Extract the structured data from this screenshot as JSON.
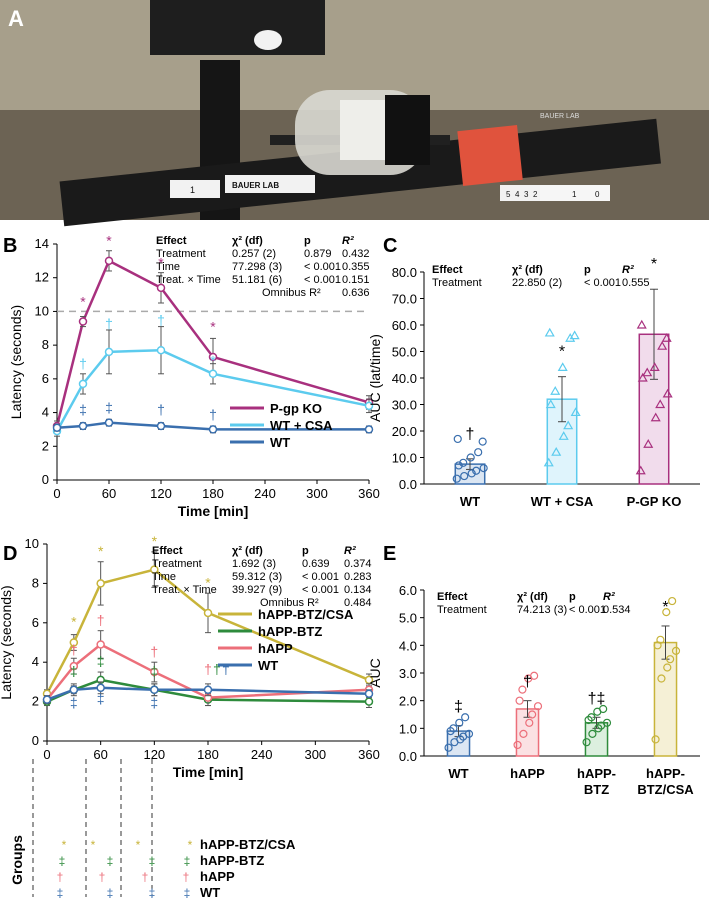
{
  "panel_a": {
    "letter": "A",
    "photo_labels": {
      "left_tag": "1",
      "center_tag": "BAUER LAB",
      "numbers": [
        "5",
        "4",
        "3",
        "2"
      ],
      "right_numbers": [
        "1",
        "0"
      ],
      "back_tag": "BAUER LAB"
    }
  },
  "chart_data": [
    {
      "panel": "B",
      "type": "line",
      "ylabel": "Latency (seconds)",
      "xlabel": "Time [min]",
      "ylim": [
        0,
        14
      ],
      "yticks": [
        0,
        2,
        4,
        6,
        8,
        10,
        12,
        14
      ],
      "xlim": [
        0,
        360
      ],
      "xticks": [
        0,
        60,
        120,
        180,
        240,
        300,
        360
      ],
      "reference_line": 10,
      "series": [
        {
          "name": "P-gp KO",
          "color": "#a8307e",
          "x": [
            0,
            30,
            60,
            120,
            180,
            360
          ],
          "y": [
            3.2,
            9.4,
            13.0,
            11.4,
            7.3,
            4.6
          ],
          "err": [
            0.3,
            0.3,
            0.6,
            0.9,
            1.1,
            0.4
          ]
        },
        {
          "name": "WT + CSA",
          "color": "#5ccbee",
          "x": [
            0,
            30,
            60,
            120,
            180,
            360
          ],
          "y": [
            2.9,
            5.7,
            7.6,
            7.7,
            6.3,
            4.4
          ],
          "err": [
            0.3,
            0.6,
            1.3,
            1.4,
            0.6,
            0.4
          ]
        },
        {
          "name": "WT",
          "color": "#3a6fae",
          "x": [
            0,
            30,
            60,
            120,
            180,
            360
          ],
          "y": [
            3.1,
            3.2,
            3.4,
            3.2,
            3.0,
            3.0
          ],
          "err": [
            0.2,
            0.2,
            0.2,
            0.2,
            0.2,
            0.2
          ]
        }
      ],
      "markers": [
        {
          "x": 30,
          "y": 10.3,
          "text": "*",
          "color": "#a8307e"
        },
        {
          "x": 60,
          "y": 13.9,
          "text": "*",
          "color": "#a8307e"
        },
        {
          "x": 120,
          "y": 12.6,
          "text": "*",
          "color": "#a8307e"
        },
        {
          "x": 180,
          "y": 8.8,
          "text": "*",
          "color": "#a8307e"
        },
        {
          "x": 30,
          "y": 6.6,
          "text": "†",
          "color": "#5ccbee"
        },
        {
          "x": 60,
          "y": 9.0,
          "text": "†",
          "color": "#5ccbee"
        },
        {
          "x": 120,
          "y": 9.2,
          "text": "†",
          "color": "#5ccbee"
        },
        {
          "x": 180,
          "y": 6.8,
          "text": "*",
          "color": "#5ccbee"
        },
        {
          "x": 30,
          "y": 3.9,
          "text": "‡",
          "color": "#3a6fae"
        },
        {
          "x": 60,
          "y": 4.0,
          "text": "‡",
          "color": "#3a6fae"
        },
        {
          "x": 120,
          "y": 3.9,
          "text": "†",
          "color": "#3a6fae"
        },
        {
          "x": 180,
          "y": 3.6,
          "text": "†",
          "color": "#3a6fae"
        }
      ],
      "stats": {
        "header": [
          "Effect",
          "χ² (df)",
          "p",
          "R²"
        ],
        "rows": [
          [
            "Treatment",
            "0.257 (2)",
            "0.879",
            "0.432"
          ],
          [
            "Time",
            "77.298 (3)",
            "< 0.001",
            "0.355"
          ],
          [
            "Treat. × Time",
            "51.181 (6)",
            "< 0.001",
            "0.151"
          ]
        ],
        "omnibus_label": "Omnibus R²",
        "omnibus_value": "0.636"
      }
    },
    {
      "panel": "C",
      "type": "bar",
      "ylabel": "AUC (lat/time)",
      "ylim": [
        0,
        80
      ],
      "yticks": [
        "0.0",
        "10.0",
        "20.0",
        "30.0",
        "40.0",
        "50.0",
        "60.0",
        "70.0",
        "80.0"
      ],
      "categories": [
        "WT",
        "WT + CSA",
        "P-GP KO"
      ],
      "values": [
        7.5,
        32.0,
        56.5
      ],
      "err": [
        2.0,
        8.5,
        17.0
      ],
      "colors": [
        "#3a6fae",
        "#5ccbee",
        "#a8307e"
      ],
      "fills": [
        "#dbe6f3",
        "#dff4fc",
        "#f1dcec"
      ],
      "point_shapes": [
        "circle",
        "triangle",
        "triangle"
      ],
      "points": [
        [
          2,
          3,
          4,
          5,
          6,
          7,
          8,
          10,
          12,
          16,
          17
        ],
        [
          8,
          12,
          18,
          22,
          27,
          30,
          35,
          44,
          55,
          56,
          57
        ],
        [
          5,
          15,
          25,
          30,
          34,
          40,
          42,
          44,
          52,
          55,
          60
        ]
      ],
      "markers": [
        "†",
        "*",
        "*"
      ],
      "stats": {
        "header": [
          "Effect",
          "χ² (df)",
          "p",
          "R²"
        ],
        "rows": [
          [
            "Treatment",
            "22.850 (2)",
            "< 0.001",
            "0.555"
          ]
        ]
      }
    },
    {
      "panel": "D",
      "type": "line",
      "ylabel": "Latency (seconds)",
      "xlabel": "Time [min]",
      "ylim": [
        0,
        10
      ],
      "yticks": [
        0,
        2,
        4,
        6,
        8,
        10
      ],
      "xlim": [
        0,
        360
      ],
      "xticks": [
        0,
        60,
        120,
        180,
        240,
        300,
        360
      ],
      "series": [
        {
          "name": "hAPP-BTZ/CSA",
          "color": "#c8b43a",
          "x": [
            0,
            30,
            60,
            120,
            180,
            360
          ],
          "y": [
            2.4,
            5.0,
            8.0,
            8.7,
            6.5,
            3.1
          ],
          "err": [
            0.2,
            0.4,
            1.1,
            0.9,
            1.0,
            0.3
          ]
        },
        {
          "name": "hAPP-BTZ",
          "color": "#2e8b3c",
          "x": [
            0,
            30,
            60,
            120,
            180,
            360
          ],
          "y": [
            2.0,
            2.6,
            3.1,
            2.6,
            2.1,
            2.0
          ],
          "err": [
            0.2,
            0.3,
            0.4,
            0.3,
            0.3,
            0.3
          ]
        },
        {
          "name": "hAPP",
          "color": "#ec6f7a",
          "x": [
            0,
            30,
            60,
            120,
            180,
            360
          ],
          "y": [
            2.1,
            3.8,
            4.9,
            3.5,
            2.2,
            2.6
          ],
          "err": [
            0.2,
            0.4,
            0.7,
            0.5,
            0.4,
            0.3
          ]
        },
        {
          "name": "WT",
          "color": "#3a6fae",
          "x": [
            0,
            30,
            60,
            120,
            180,
            360
          ],
          "y": [
            2.1,
            2.6,
            2.7,
            2.6,
            2.6,
            2.4
          ],
          "err": [
            0.2,
            0.2,
            0.3,
            0.3,
            0.3,
            0.2
          ]
        }
      ],
      "markers": [
        {
          "x": 30,
          "y": 5.8,
          "text": "*",
          "color": "#c8b43a"
        },
        {
          "x": 60,
          "y": 9.4,
          "text": "*",
          "color": "#c8b43a"
        },
        {
          "x": 120,
          "y": 9.9,
          "text": "*",
          "color": "#c8b43a"
        },
        {
          "x": 180,
          "y": 7.8,
          "text": "*",
          "color": "#c8b43a"
        },
        {
          "x": 30,
          "y": 4.4,
          "text": "†",
          "color": "#ec6f7a"
        },
        {
          "x": 60,
          "y": 5.9,
          "text": "†",
          "color": "#ec6f7a"
        },
        {
          "x": 120,
          "y": 4.3,
          "text": "†",
          "color": "#ec6f7a"
        },
        {
          "x": 30,
          "y": 3.3,
          "text": "‡",
          "color": "#2e8b3c"
        },
        {
          "x": 60,
          "y": 3.8,
          "text": "‡",
          "color": "#2e8b3c"
        },
        {
          "x": 120,
          "y": 3.3,
          "text": "‡",
          "color": "#2e8b3c"
        },
        {
          "x": 30,
          "y": 1.7,
          "text": "‡",
          "color": "#3a6fae"
        },
        {
          "x": 60,
          "y": 1.9,
          "text": "‡",
          "color": "#3a6fae"
        },
        {
          "x": 120,
          "y": 1.7,
          "text": "‡",
          "color": "#3a6fae"
        },
        {
          "x": 180,
          "y": 3.4,
          "text": "†",
          "color": "#ec6f7a"
        },
        {
          "x": 190,
          "y": 3.4,
          "text": "†",
          "color": "#2e8b3c"
        },
        {
          "x": 200,
          "y": 3.4,
          "text": "†",
          "color": "#3a6fae"
        }
      ],
      "stats": {
        "header": [
          "Effect",
          "χ² (df)",
          "p",
          "R²"
        ],
        "rows": [
          [
            "Treatment",
            "1.692 (3)",
            "0.639",
            "0.374"
          ],
          [
            "Time",
            "59.312 (3)",
            "< 0.001",
            "0.283"
          ],
          [
            "Treat. × Time",
            "39.927 (9)",
            "< 0.001",
            "0.134"
          ]
        ],
        "omnibus_label": "Omnibus R²",
        "omnibus_value": "0.484"
      },
      "groups_table": {
        "title": "Groups",
        "rows": [
          {
            "label": "hAPP-BTZ/CSA",
            "symbol": "*",
            "color": "#c8b43a"
          },
          {
            "label": "hAPP-BTZ",
            "symbol": "‡",
            "color": "#2e8b3c"
          },
          {
            "label": "hAPP",
            "symbol": "†",
            "color": "#ec6f7a"
          },
          {
            "label": "WT",
            "symbol": "‡",
            "color": "#3a6fae"
          }
        ]
      }
    },
    {
      "panel": "E",
      "type": "bar",
      "ylabel": "AUC",
      "ylim": [
        0,
        6
      ],
      "yticks": [
        "0.0",
        "1.0",
        "2.0",
        "3.0",
        "4.0",
        "5.0",
        "6.0"
      ],
      "categories": [
        "WT",
        "hAPP",
        "hAPP-\nBTZ",
        "hAPP-\nBTZ/CSA"
      ],
      "values": [
        0.9,
        1.7,
        1.2,
        4.1
      ],
      "err": [
        0.2,
        0.3,
        0.2,
        0.6
      ],
      "colors": [
        "#3a6fae",
        "#ec6f7a",
        "#2e8b3c",
        "#c8b43a"
      ],
      "fills": [
        "#dbe6f3",
        "#fbe1e3",
        "#dcefdf",
        "#f5f0d6"
      ],
      "point_shapes": [
        "circle",
        "circle",
        "circle",
        "circle"
      ],
      "points": [
        [
          0.3,
          0.5,
          0.6,
          0.7,
          0.8,
          0.9,
          1.0,
          1.2,
          1.4
        ],
        [
          0.4,
          0.8,
          1.2,
          1.5,
          1.8,
          2.0,
          2.4,
          2.8,
          2.9
        ],
        [
          0.5,
          0.8,
          1.0,
          1.1,
          1.2,
          1.3,
          1.4,
          1.6,
          1.7
        ],
        [
          0.6,
          2.8,
          3.2,
          3.5,
          3.8,
          4.0,
          4.2,
          5.2,
          5.6
        ]
      ],
      "markers": [
        "‡",
        "†",
        "†‡",
        "*"
      ],
      "stats": {
        "header": [
          "Effect",
          "χ² (df)",
          "p",
          "R²"
        ],
        "rows": [
          [
            "Treatment",
            "74.213 (3)",
            "< 0.001",
            "0.534"
          ]
        ]
      }
    }
  ],
  "panel_letters": [
    "B",
    "C",
    "D",
    "E"
  ]
}
